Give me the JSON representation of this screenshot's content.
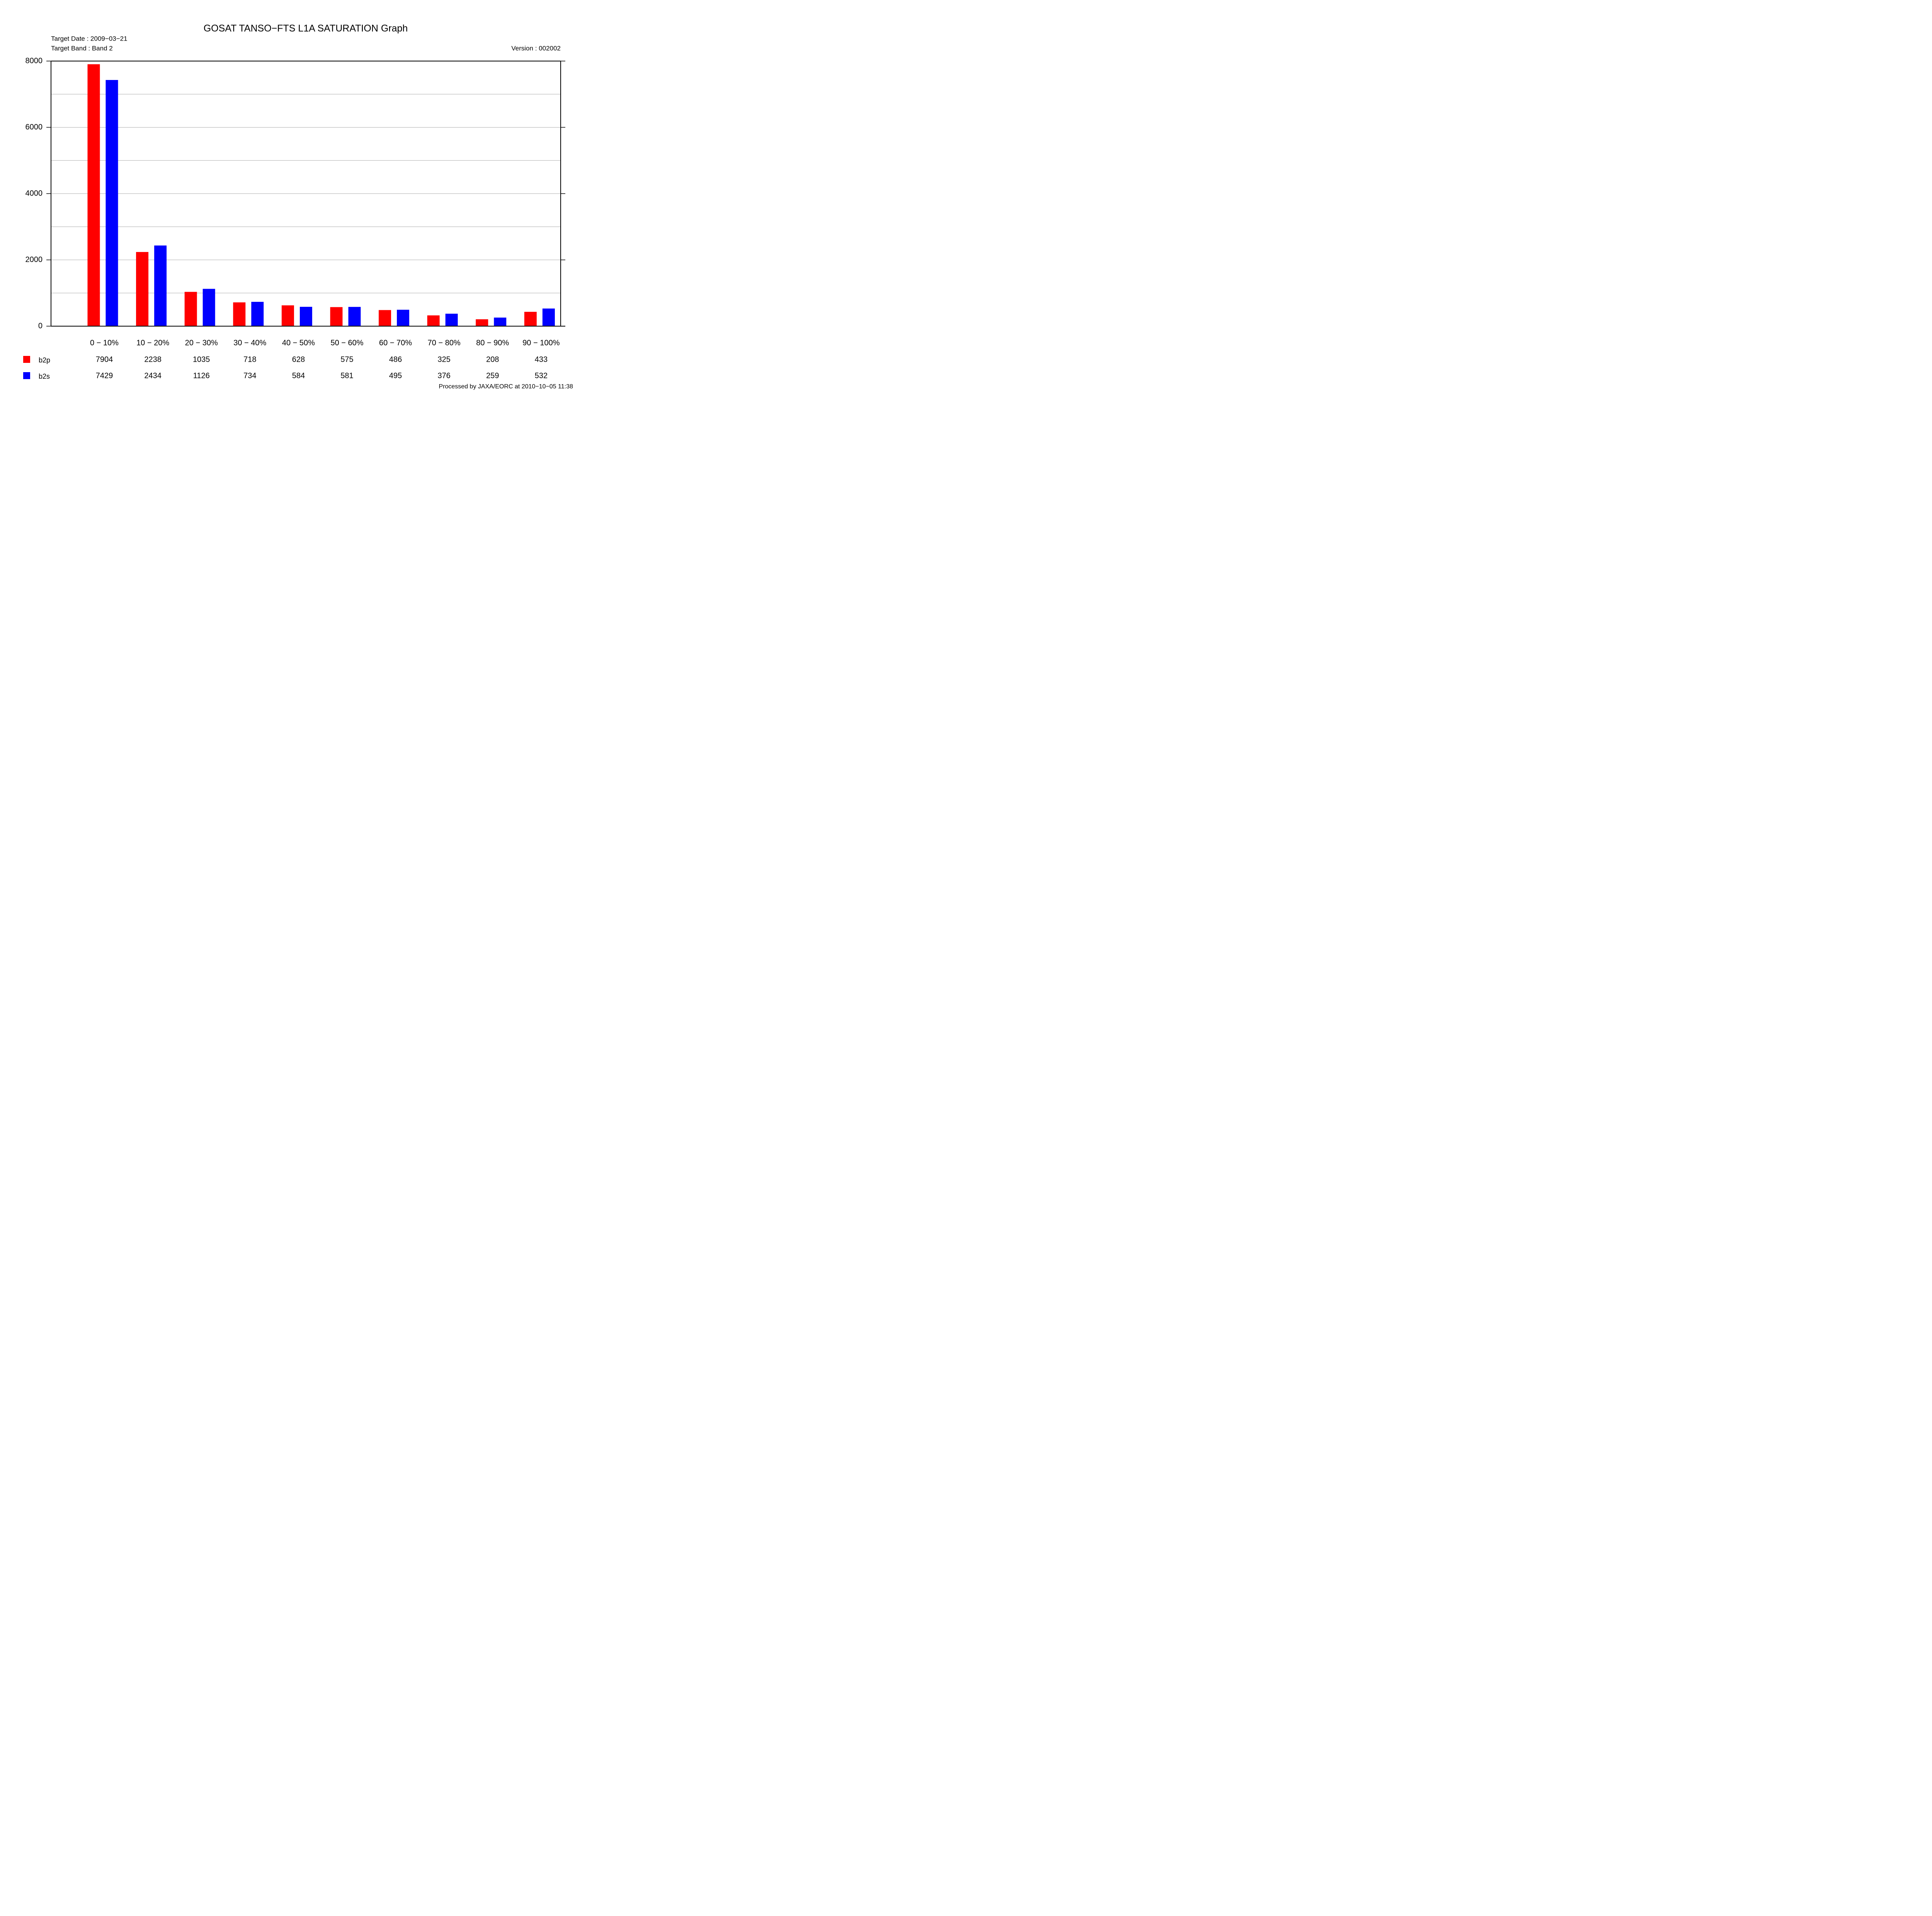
{
  "chart_data": {
    "type": "bar",
    "title": "GOSAT TANSO−FTS L1A SATURATION Graph",
    "subtitles": [
      "Target Date : 2009−03−21",
      "Target Band : Band 2"
    ],
    "version": "Version : 002002",
    "footer": "Processed by JAXA/EORC at 2010−10−05 11:38",
    "categories": [
      "0 −  10%",
      "10 −  20%",
      "20 −  30%",
      "30 −  40%",
      "40 −  50%",
      "50 −  60%",
      "60 −  70%",
      "70 −  80%",
      "80 −  90%",
      "90 − 100%"
    ],
    "series": [
      {
        "name": "b2p",
        "color": "#ff0000",
        "values": [
          7904,
          2238,
          1035,
          718,
          628,
          575,
          486,
          325,
          208,
          433
        ]
      },
      {
        "name": "b2s",
        "color": "#0000ff",
        "values": [
          7429,
          2434,
          1126,
          734,
          584,
          581,
          495,
          376,
          259,
          532
        ]
      }
    ],
    "ylim": [
      0,
      8000
    ],
    "yticks": [
      0,
      2000,
      4000,
      6000,
      8000
    ],
    "grid": true
  }
}
